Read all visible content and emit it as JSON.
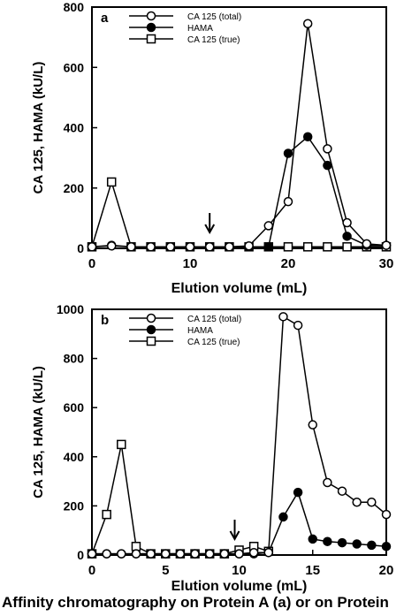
{
  "chart_data": [
    {
      "type": "line",
      "panel_label": "a",
      "xlabel": "Elution volume (mL)",
      "ylabel": "CA 125,  HAMA  (kU/L)",
      "xlim": [
        0,
        30
      ],
      "ylim": [
        0,
        800
      ],
      "xticks": [
        0,
        10,
        20,
        30
      ],
      "yticks": [
        0,
        200,
        400,
        600,
        800
      ],
      "legend_position": "top-left",
      "arrow_x": 12,
      "series": [
        {
          "name": "CA 125 (total)",
          "marker": "open-circle",
          "x": [
            0,
            2,
            4,
            6,
            8,
            10,
            12,
            14,
            16,
            18,
            20,
            22,
            24,
            26,
            28,
            30
          ],
          "y": [
            5,
            8,
            5,
            5,
            5,
            5,
            5,
            5,
            8,
            75,
            155,
            745,
            330,
            85,
            15,
            10
          ]
        },
        {
          "name": "HAMA",
          "marker": "filled-circle",
          "x": [
            0,
            2,
            4,
            6,
            8,
            10,
            12,
            14,
            16,
            18,
            20,
            22,
            24,
            26,
            28,
            30
          ],
          "y": [
            5,
            10,
            5,
            5,
            5,
            5,
            5,
            5,
            5,
            5,
            315,
            370,
            275,
            40,
            10,
            10
          ]
        },
        {
          "name": "CA 125 (true)",
          "marker": "open-square",
          "x": [
            0,
            2,
            4,
            6,
            8,
            10,
            12,
            14,
            16,
            18,
            20,
            22,
            24,
            26,
            28,
            30
          ],
          "y": [
            5,
            220,
            5,
            5,
            5,
            5,
            5,
            5,
            5,
            5,
            5,
            5,
            5,
            5,
            5,
            5
          ]
        }
      ]
    },
    {
      "type": "line",
      "panel_label": "b",
      "xlabel": "Elution volume (mL)",
      "ylabel": "CA 125,  HAMA  (kU/L)",
      "xlim": [
        0,
        20
      ],
      "ylim": [
        0,
        1000
      ],
      "xticks": [
        0,
        5,
        10,
        15,
        20
      ],
      "yticks": [
        0,
        200,
        400,
        600,
        800,
        1000
      ],
      "legend_position": "top-left",
      "arrow_x": 9.7,
      "series": [
        {
          "name": "CA 125 (total)",
          "marker": "open-circle",
          "x": [
            0,
            1,
            2,
            3,
            4,
            5,
            6,
            7,
            8,
            9,
            10,
            11,
            12,
            13,
            14,
            15,
            16,
            17,
            18,
            19,
            20
          ],
          "y": [
            5,
            5,
            5,
            5,
            5,
            5,
            5,
            5,
            5,
            5,
            5,
            10,
            10,
            970,
            935,
            530,
            295,
            260,
            215,
            215,
            165
          ]
        },
        {
          "name": "HAMA",
          "marker": "filled-circle",
          "x": [
            0,
            1,
            2,
            3,
            4,
            5,
            6,
            7,
            8,
            9,
            10,
            11,
            12,
            13,
            14,
            15,
            16,
            17,
            18,
            19,
            20
          ],
          "y": [
            5,
            5,
            5,
            5,
            5,
            5,
            5,
            5,
            5,
            5,
            5,
            5,
            10,
            155,
            255,
            65,
            55,
            50,
            45,
            40,
            35
          ]
        },
        {
          "name": "CA 125 (true)",
          "marker": "open-square",
          "x": [
            0,
            1,
            2,
            3,
            4,
            5,
            6,
            7,
            8,
            9,
            10,
            11,
            12
          ],
          "y": [
            5,
            165,
            450,
            35,
            5,
            5,
            5,
            5,
            5,
            5,
            20,
            35,
            15
          ]
        }
      ]
    }
  ],
  "caption": "Affinity chromatography on Protein A (a) or on Protein"
}
